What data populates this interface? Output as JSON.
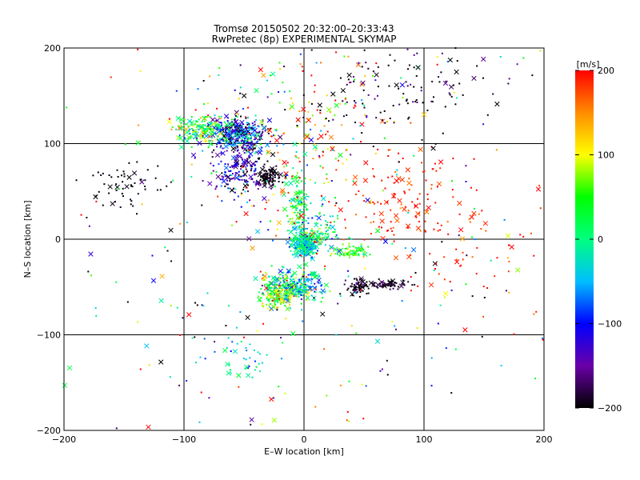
{
  "chart_data": {
    "type": "scatter",
    "title": "Tromsø 20150502 20:32:00–20:33:43",
    "subtitle": "RwPretec (8p) EXPERIMENTAL SKYMAP",
    "xlabel": "E–W location [km]",
    "ylabel": "N–S location [km]",
    "xlim": [
      -200,
      200
    ],
    "ylim": [
      -200,
      200
    ],
    "xticks": [
      -200,
      -100,
      0,
      100,
      200
    ],
    "yticks": [
      -200,
      -100,
      0,
      100,
      200
    ],
    "grid": true,
    "colorbar": {
      "label": "[m/s]",
      "range": [
        -200,
        200
      ],
      "ticks": [
        -200,
        -100,
        0,
        100,
        200
      ],
      "stops": [
        "#000000",
        "#6a00a8",
        "#0000ff",
        "#00bfff",
        "#00ff80",
        "#00ff00",
        "#ffff00",
        "#ff8c00",
        "#ff0000"
      ]
    },
    "clusters": [
      {
        "x": -55,
        "y": 110,
        "sx": 12,
        "sy": 9,
        "n": 380,
        "v": -110,
        "vs": 70
      },
      {
        "x": -30,
        "y": 65,
        "sx": 5,
        "sy": 5,
        "n": 90,
        "v": -200,
        "vs": 10
      },
      {
        "x": -55,
        "y": 72,
        "sx": 12,
        "sy": 15,
        "n": 180,
        "v": -140,
        "vs": 40
      },
      {
        "x": -85,
        "y": 115,
        "sx": 10,
        "sy": 7,
        "n": 160,
        "v": 20,
        "vs": 60
      },
      {
        "x": 0,
        "y": -5,
        "sx": 5,
        "sy": 6,
        "n": 260,
        "v": -20,
        "vs": 40
      },
      {
        "x": -5,
        "y": 30,
        "sx": 5,
        "sy": 20,
        "n": 120,
        "v": 10,
        "vs": 50
      },
      {
        "x": -8,
        "y": -50,
        "sx": 12,
        "sy": 9,
        "n": 280,
        "v": -20,
        "vs": 70
      },
      {
        "x": -22,
        "y": -60,
        "sx": 8,
        "sy": 7,
        "n": 130,
        "v": 70,
        "vs": 50
      },
      {
        "x": 45,
        "y": -50,
        "sx": 5,
        "sy": 4,
        "n": 70,
        "v": -190,
        "vs": 20
      },
      {
        "x": 70,
        "y": -47,
        "sx": 10,
        "sy": 2,
        "n": 60,
        "v": -190,
        "vs": 15
      },
      {
        "x": 40,
        "y": -13,
        "sx": 8,
        "sy": 4,
        "n": 60,
        "v": 60,
        "vs": 40
      },
      {
        "x": 15,
        "y": 8,
        "sx": 10,
        "sy": 10,
        "n": 80,
        "v": 10,
        "vs": 60
      },
      {
        "x": 80,
        "y": 40,
        "sx": 25,
        "sy": 25,
        "n": 110,
        "v": 190,
        "vs": 15
      },
      {
        "x": -150,
        "y": 55,
        "sx": 18,
        "sy": 15,
        "n": 60,
        "v": -200,
        "vs": 10
      },
      {
        "x": 0,
        "y": 100,
        "sx": 40,
        "sy": 60,
        "n": 240,
        "v": 120,
        "vs": 130
      },
      {
        "x": 80,
        "y": 160,
        "sx": 40,
        "sy": 25,
        "n": 120,
        "v": -190,
        "vs": 30
      },
      {
        "x": 0,
        "y": 0,
        "sx": 200,
        "sy": 200,
        "n": 500,
        "v": 0,
        "vs": 180
      },
      {
        "x": -50,
        "y": -125,
        "sx": 20,
        "sy": 10,
        "n": 40,
        "v": -40,
        "vs": 40
      },
      {
        "x": 140,
        "y": 0,
        "sx": 30,
        "sy": 40,
        "n": 60,
        "v": 190,
        "vs": 20
      }
    ]
  }
}
